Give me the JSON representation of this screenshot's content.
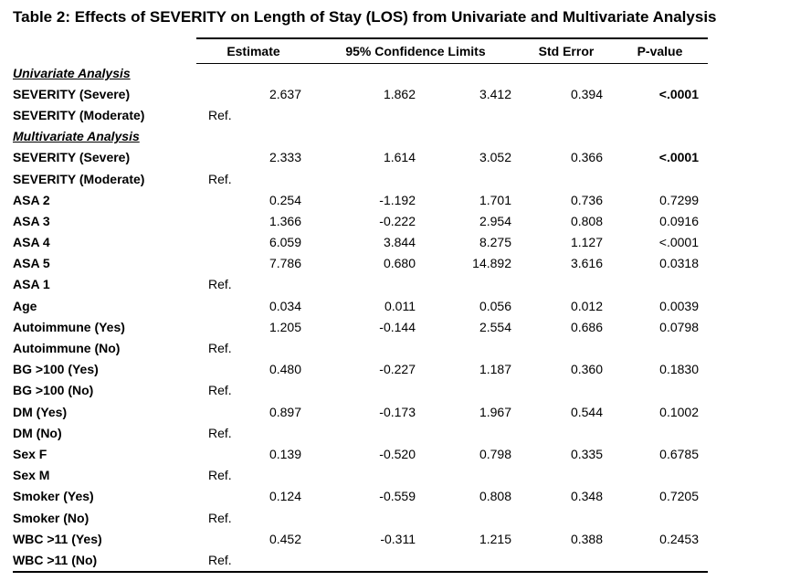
{
  "title": "Table 2: Effects of SEVERITY on Length of Stay (LOS) from Univariate and Multivariate Analysis",
  "table": {
    "headers": {
      "estimate": "Estimate",
      "ci": "95% Confidence Limits",
      "std_error": "Std Error",
      "p_value": "P-value"
    },
    "rows": [
      {
        "type": "section",
        "label": "Univariate Analysis"
      },
      {
        "type": "data",
        "label": "SEVERITY (Severe)",
        "estimate": "2.637",
        "ci_low": "1.862",
        "ci_high": "3.412",
        "std_error": "0.394",
        "p_value": "<.0001",
        "p_bold": true
      },
      {
        "type": "ref",
        "label": "SEVERITY (Moderate)",
        "estimate": "Ref."
      },
      {
        "type": "section",
        "label": "Multivariate Analysis"
      },
      {
        "type": "data",
        "label": "SEVERITY (Severe)",
        "estimate": "2.333",
        "ci_low": "1.614",
        "ci_high": "3.052",
        "std_error": "0.366",
        "p_value": "<.0001",
        "p_bold": true
      },
      {
        "type": "ref",
        "label": "SEVERITY (Moderate)",
        "estimate": "Ref."
      },
      {
        "type": "data",
        "label": "ASA 2",
        "estimate": "0.254",
        "ci_low": "-1.192",
        "ci_high": "1.701",
        "std_error": "0.736",
        "p_value": "0.7299"
      },
      {
        "type": "data",
        "label": "ASA 3",
        "estimate": "1.366",
        "ci_low": "-0.222",
        "ci_high": "2.954",
        "std_error": "0.808",
        "p_value": "0.0916"
      },
      {
        "type": "data",
        "label": "ASA 4",
        "estimate": "6.059",
        "ci_low": "3.844",
        "ci_high": "8.275",
        "std_error": "1.127",
        "p_value": "<.0001"
      },
      {
        "type": "data",
        "label": "ASA 5",
        "estimate": "7.786",
        "ci_low": "0.680",
        "ci_high": "14.892",
        "std_error": "3.616",
        "p_value": "0.0318"
      },
      {
        "type": "ref",
        "label": "ASA 1",
        "estimate": "Ref."
      },
      {
        "type": "data",
        "label": "Age",
        "estimate": "0.034",
        "ci_low": "0.011",
        "ci_high": "0.056",
        "std_error": "0.012",
        "p_value": "0.0039"
      },
      {
        "type": "data",
        "label": "Autoimmune (Yes)",
        "estimate": "1.205",
        "ci_low": "-0.144",
        "ci_high": "2.554",
        "std_error": "0.686",
        "p_value": "0.0798"
      },
      {
        "type": "ref",
        "label": "Autoimmune (No)",
        "estimate": "Ref."
      },
      {
        "type": "data",
        "label": "BG >100 (Yes)",
        "estimate": "0.480",
        "ci_low": "-0.227",
        "ci_high": "1.187",
        "std_error": "0.360",
        "p_value": "0.1830"
      },
      {
        "type": "ref",
        "label": "BG >100 (No)",
        "estimate": "Ref."
      },
      {
        "type": "data",
        "label": "DM (Yes)",
        "estimate": "0.897",
        "ci_low": "-0.173",
        "ci_high": "1.967",
        "std_error": "0.544",
        "p_value": "0.1002"
      },
      {
        "type": "ref",
        "label": "DM (No)",
        "estimate": "Ref."
      },
      {
        "type": "data",
        "label": "Sex F",
        "estimate": "0.139",
        "ci_low": "-0.520",
        "ci_high": "0.798",
        "std_error": "0.335",
        "p_value": "0.6785"
      },
      {
        "type": "ref",
        "label": "Sex M",
        "estimate": "Ref."
      },
      {
        "type": "data",
        "label": "Smoker (Yes)",
        "estimate": "0.124",
        "ci_low": "-0.559",
        "ci_high": "0.808",
        "std_error": "0.348",
        "p_value": "0.7205"
      },
      {
        "type": "ref",
        "label": "Smoker (No)",
        "estimate": "Ref."
      },
      {
        "type": "data",
        "label": "WBC >11 (Yes)",
        "estimate": "0.452",
        "ci_low": "-0.311",
        "ci_high": "1.215",
        "std_error": "0.388",
        "p_value": "0.2453"
      },
      {
        "type": "ref",
        "label": "WBC >11 (No)",
        "estimate": "Ref."
      }
    ]
  }
}
